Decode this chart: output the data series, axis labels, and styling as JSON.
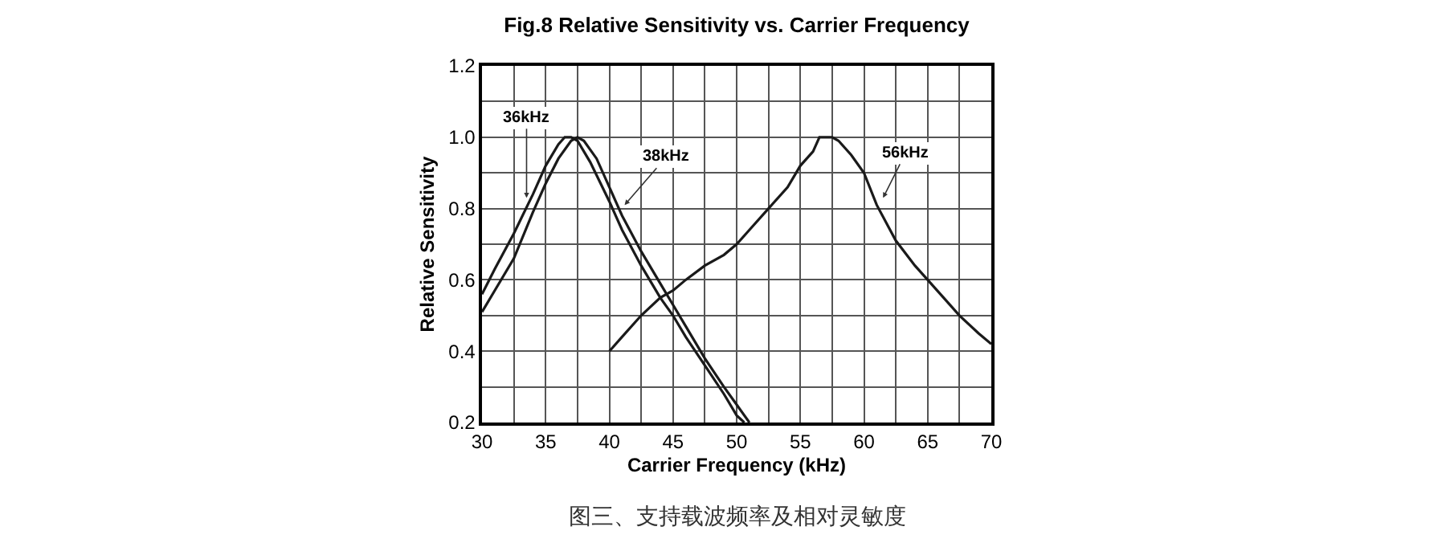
{
  "chart_data": {
    "type": "line",
    "title": "Fig.8 Relative Sensitivity vs. Carrier Frequency",
    "xlabel": "Carrier Frequency (kHz)",
    "ylabel": "Relative Sensitivity",
    "series": [
      {
        "color": "#1a1a1a",
        "x": [
          30,
          31,
          32.5,
          34,
          35,
          36,
          36.5,
          37,
          37.5,
          38.5,
          40,
          41,
          42.5,
          44,
          45,
          46,
          47.5,
          49,
          50,
          50.6
        ],
        "values": [
          0.56,
          0.63,
          0.73,
          0.84,
          0.92,
          0.98,
          1.0,
          1.0,
          0.99,
          0.93,
          0.82,
          0.74,
          0.64,
          0.55,
          0.5,
          0.44,
          0.36,
          0.28,
          0.22,
          0.2
        ]
      },
      {
        "color": "#1a1a1a",
        "x": [
          30,
          31,
          32.5,
          34,
          35,
          36,
          37,
          37.5,
          38,
          39,
          40,
          41,
          42.5,
          44,
          45,
          46,
          47.5,
          49,
          50,
          51
        ],
        "values": [
          0.51,
          0.57,
          0.66,
          0.79,
          0.87,
          0.94,
          0.99,
          1.0,
          0.99,
          0.94,
          0.86,
          0.78,
          0.68,
          0.59,
          0.53,
          0.47,
          0.38,
          0.3,
          0.25,
          0.2
        ]
      },
      {
        "color": "#1a1a1a",
        "x": [
          40,
          41,
          42.5,
          44,
          45,
          46,
          47.5,
          49,
          50,
          51,
          52.5,
          54,
          55,
          56,
          56.5,
          57.5,
          58,
          59,
          60,
          61,
          62.5,
          64,
          65,
          66,
          67.5,
          69,
          70
        ],
        "values": [
          0.4,
          0.44,
          0.5,
          0.55,
          0.57,
          0.6,
          0.64,
          0.67,
          0.7,
          0.74,
          0.8,
          0.86,
          0.92,
          0.96,
          1.0,
          1.0,
          0.99,
          0.95,
          0.9,
          0.81,
          0.71,
          0.64,
          0.6,
          0.56,
          0.5,
          0.45,
          0.42
        ]
      }
    ],
    "xlim": [
      30,
      70
    ],
    "xticks": [
      30,
      {
        "value": 32.5,
        "label": null
      },
      35,
      {
        "value": 37.5,
        "label": null
      },
      40,
      {
        "value": 42.5,
        "label": null
      },
      45,
      {
        "value": 47.5,
        "label": null
      },
      50,
      {
        "value": 52.5,
        "label": null
      },
      55,
      {
        "value": 57.5,
        "label": null
      },
      60,
      {
        "value": 62.5,
        "label": null
      },
      65,
      {
        "value": 67.5,
        "label": null
      },
      70
    ],
    "ylim": [
      0.2,
      1.2
    ],
    "yticks": [
      {
        "value": 0.2,
        "label": "0.2"
      },
      {
        "value": 0.3,
        "label": null
      },
      {
        "value": 0.4,
        "label": "0.4"
      },
      {
        "value": 0.5,
        "label": null
      },
      {
        "value": 0.6,
        "label": "0.6"
      },
      {
        "value": 0.7,
        "label": null
      },
      {
        "value": 0.8,
        "label": "0.8"
      },
      {
        "value": 0.9,
        "label": null
      },
      {
        "value": 1.0,
        "label": "1.0"
      },
      {
        "value": 1.1,
        "label": null
      },
      {
        "value": 1.2,
        "label": "1.2"
      }
    ],
    "grid": true,
    "marker": "none",
    "line_style": "solid",
    "annotations": [
      {
        "text": "36kHz",
        "x": 33.5,
        "y": 0.83
      },
      {
        "text": "38kHz",
        "x": 41.2,
        "y": 0.81
      },
      {
        "text": "56kHz",
        "x": 61.5,
        "y": 0.83
      },
      "图三、支持载波频率及相对灵敏度"
    ]
  }
}
